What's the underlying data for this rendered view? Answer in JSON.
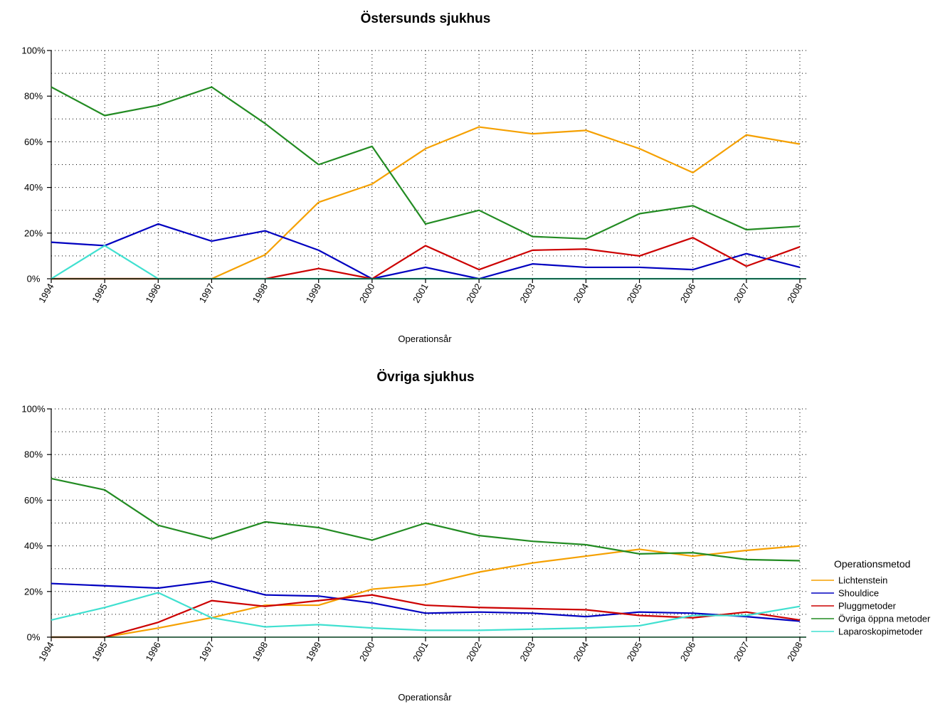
{
  "chart_data": [
    {
      "type": "line",
      "title": "Östersunds sjukhus",
      "xlabel": "Operationsår",
      "ylabel": "",
      "ylim": [
        0,
        100
      ],
      "yticks": [
        "0%",
        "20%",
        "40%",
        "60%",
        "80%",
        "100%"
      ],
      "grid": true,
      "categories": [
        "1994",
        "1995",
        "1996",
        "1997",
        "1998",
        "1999",
        "2000",
        "2001",
        "2002",
        "2003",
        "2004",
        "2005",
        "2006",
        "2007",
        "2008"
      ],
      "series": [
        {
          "name": "Lichtenstein",
          "color": "#f5a000",
          "values": [
            0,
            0,
            0,
            0,
            10.5,
            33.5,
            41.5,
            57,
            66.5,
            63.5,
            65,
            57,
            46.5,
            63,
            59
          ]
        },
        {
          "name": "Shouldice",
          "color": "#0000c0",
          "values": [
            16,
            14.5,
            24,
            16.5,
            21,
            12.5,
            0,
            5,
            0,
            6.5,
            5,
            5,
            4,
            11,
            5
          ]
        },
        {
          "name": "Pluggmetoder",
          "color": "#cc0000",
          "values": [
            0,
            0,
            0,
            0,
            0,
            4.5,
            0,
            14.5,
            4,
            12.5,
            13,
            10,
            18,
            5.5,
            14
          ]
        },
        {
          "name": "Övriga öppna metoder",
          "color": "#228b22",
          "values": [
            84,
            71.5,
            76,
            84,
            68,
            50,
            58,
            24,
            30,
            18.5,
            17.5,
            28.5,
            32,
            21.5,
            23
          ]
        },
        {
          "name": "Laparoskopimetoder",
          "color": "#40e0d0",
          "values": [
            0,
            14.5,
            0,
            0,
            0,
            0,
            0,
            0,
            0,
            0,
            0,
            0,
            0,
            0,
            0
          ]
        }
      ]
    },
    {
      "type": "line",
      "title": "Övriga sjukhus",
      "xlabel": "Operationsår",
      "ylabel": "",
      "ylim": [
        0,
        100
      ],
      "yticks": [
        "0%",
        "20%",
        "40%",
        "60%",
        "80%",
        "100%"
      ],
      "grid": true,
      "legend_position": "right",
      "legend_title": "Operationsmetod",
      "categories": [
        "1994",
        "1995",
        "1996",
        "1997",
        "1998",
        "1999",
        "2000",
        "2001",
        "2002",
        "2003",
        "2004",
        "2005",
        "2006",
        "2007",
        "2008"
      ],
      "series": [
        {
          "name": "Lichtenstein",
          "color": "#f5a000",
          "values": [
            0,
            0,
            4,
            8.5,
            14,
            14,
            21,
            23,
            28.5,
            32.5,
            35.5,
            38.5,
            35.5,
            38,
            40
          ]
        },
        {
          "name": "Shouldice",
          "color": "#0000c0",
          "values": [
            23.5,
            22.5,
            21.5,
            24.5,
            18.5,
            18,
            15,
            10.5,
            11,
            10.5,
            9,
            11,
            10.5,
            9,
            7
          ]
        },
        {
          "name": "Pluggmetoder",
          "color": "#cc0000",
          "values": [
            0,
            0,
            6.5,
            16,
            13.5,
            16,
            18.5,
            14,
            13,
            12.5,
            12,
            9.5,
            8.5,
            11,
            7.5
          ]
        },
        {
          "name": "Övriga öppna metoder",
          "color": "#228b22",
          "values": [
            69.5,
            64.5,
            49,
            43,
            50.5,
            48,
            42.5,
            50,
            44.5,
            42,
            40.5,
            36.5,
            37,
            34,
            33.5
          ]
        },
        {
          "name": "Laparoskopimetoder",
          "color": "#40e0d0",
          "values": [
            7.5,
            13,
            19.5,
            8.5,
            4.5,
            5.5,
            4,
            3,
            3,
            3.5,
            4,
            5,
            9.5,
            9.5,
            13.5
          ]
        }
      ]
    }
  ]
}
